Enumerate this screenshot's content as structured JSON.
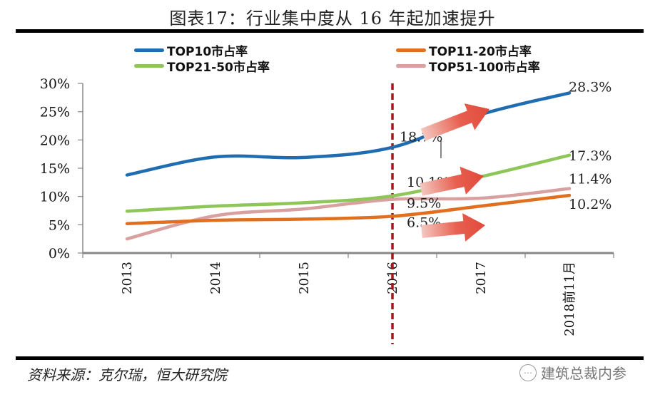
{
  "title": "图表17：行业集中度从 16 年起加速提升",
  "source": "资料来源：克尔瑞，恒大研究院",
  "watermark": "建筑总裁内参",
  "chart_data": {
    "type": "line",
    "title": "图表17：行业集中度从 16 年起加速提升",
    "xlabel": "",
    "ylabel": "",
    "categories": [
      "2013",
      "2014",
      "2015",
      "2016",
      "2017",
      "2018前11月"
    ],
    "ylim": [
      0,
      30
    ],
    "yticks": [
      "0%",
      "5%",
      "10%",
      "15%",
      "20%",
      "25%",
      "30%"
    ],
    "ytick_values": [
      0,
      5,
      10,
      15,
      20,
      25,
      30
    ],
    "grid": false,
    "legend_position": "top",
    "series": [
      {
        "name": "TOP10市占率",
        "color": "#1f6db0",
        "values": [
          13.8,
          17.0,
          16.9,
          18.7,
          24.5,
          28.3
        ]
      },
      {
        "name": "TOP11-20市占率",
        "color": "#e07020",
        "values": [
          5.2,
          5.8,
          6.0,
          6.5,
          8.3,
          10.2
        ]
      },
      {
        "name": "TOP21-50市占率",
        "color": "#8fc65a",
        "values": [
          7.4,
          8.3,
          8.9,
          10.1,
          13.5,
          17.3
        ]
      },
      {
        "name": "TOP51-100市占率",
        "color": "#d9a0a0",
        "values": [
          2.5,
          6.6,
          7.8,
          9.5,
          9.7,
          11.4
        ]
      }
    ],
    "annotations": [
      {
        "text": "18.7%",
        "series": 0,
        "category": "2016"
      },
      {
        "text": "28.3%",
        "series": 0,
        "category": "2018前11月"
      },
      {
        "text": "10.1%",
        "series": 2,
        "category": "2016"
      },
      {
        "text": "17.3%",
        "series": 2,
        "category": "2018前11月"
      },
      {
        "text": "9.5%",
        "series": 3,
        "category": "2016"
      },
      {
        "text": "11.4%",
        "series": 3,
        "category": "2018前11月"
      },
      {
        "text": "6.5%",
        "series": 1,
        "category": "2016"
      },
      {
        "text": "10.2%",
        "series": 1,
        "category": "2018前11月"
      }
    ],
    "reference_line": {
      "category": "2016",
      "style": "dashed",
      "color": "#a01818"
    },
    "arrow_color": "#e05040"
  }
}
